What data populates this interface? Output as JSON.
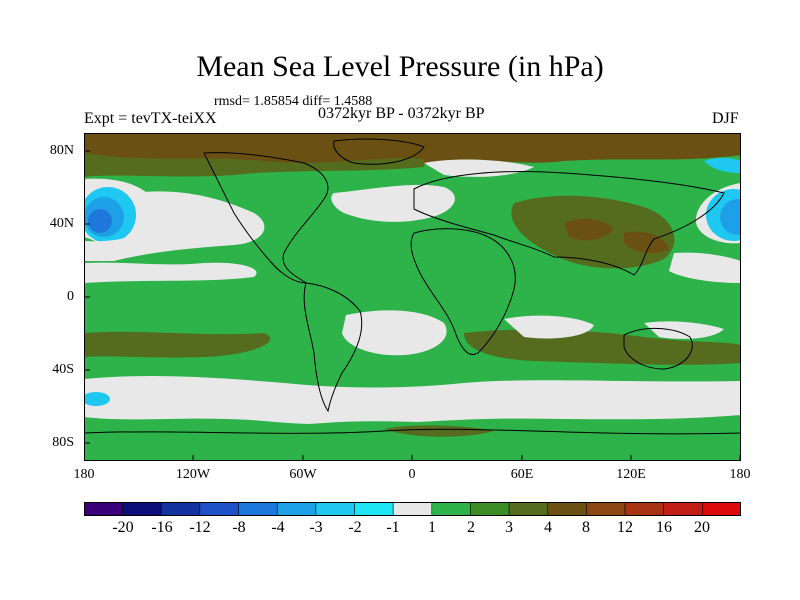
{
  "title": "Mean Sea Level Pressure (in hPa)",
  "stats": "rmsd= 1.85854 diff= 1.4588",
  "experiment": "Expt = tevTX-teiXX",
  "period": "0372kyr BP - 0372kyr BP",
  "season": "DJF",
  "lat_labels": [
    "80N",
    "40N",
    "0",
    "40S",
    "80S"
  ],
  "lon_labels": [
    "180",
    "120W",
    "60W",
    "0",
    "60E",
    "120E",
    "180"
  ],
  "colorbar": {
    "colors": [
      "#3a007a",
      "#0a0f7a",
      "#1432a0",
      "#1e50c8",
      "#1e78dc",
      "#1ea0e6",
      "#1ec8f0",
      "#1ee6f5",
      "#e8e8e8",
      "#2db34a",
      "#3c8c28",
      "#556b1e",
      "#6b5014",
      "#8c4614",
      "#a83214",
      "#c01e14",
      "#dc0a0a"
    ],
    "labels": [
      "-20",
      "-16",
      "-12",
      "-8",
      "-4",
      "-3",
      "-2",
      "-1",
      "1",
      "2",
      "3",
      "4",
      "8",
      "12",
      "16",
      "20"
    ]
  },
  "palette": {
    "green": "#2db34a",
    "olive": "#556b1e",
    "brown": "#6b5014",
    "white": "#e8e8e8",
    "cyan": "#1ec8f0",
    "blue": "#1e78dc"
  }
}
